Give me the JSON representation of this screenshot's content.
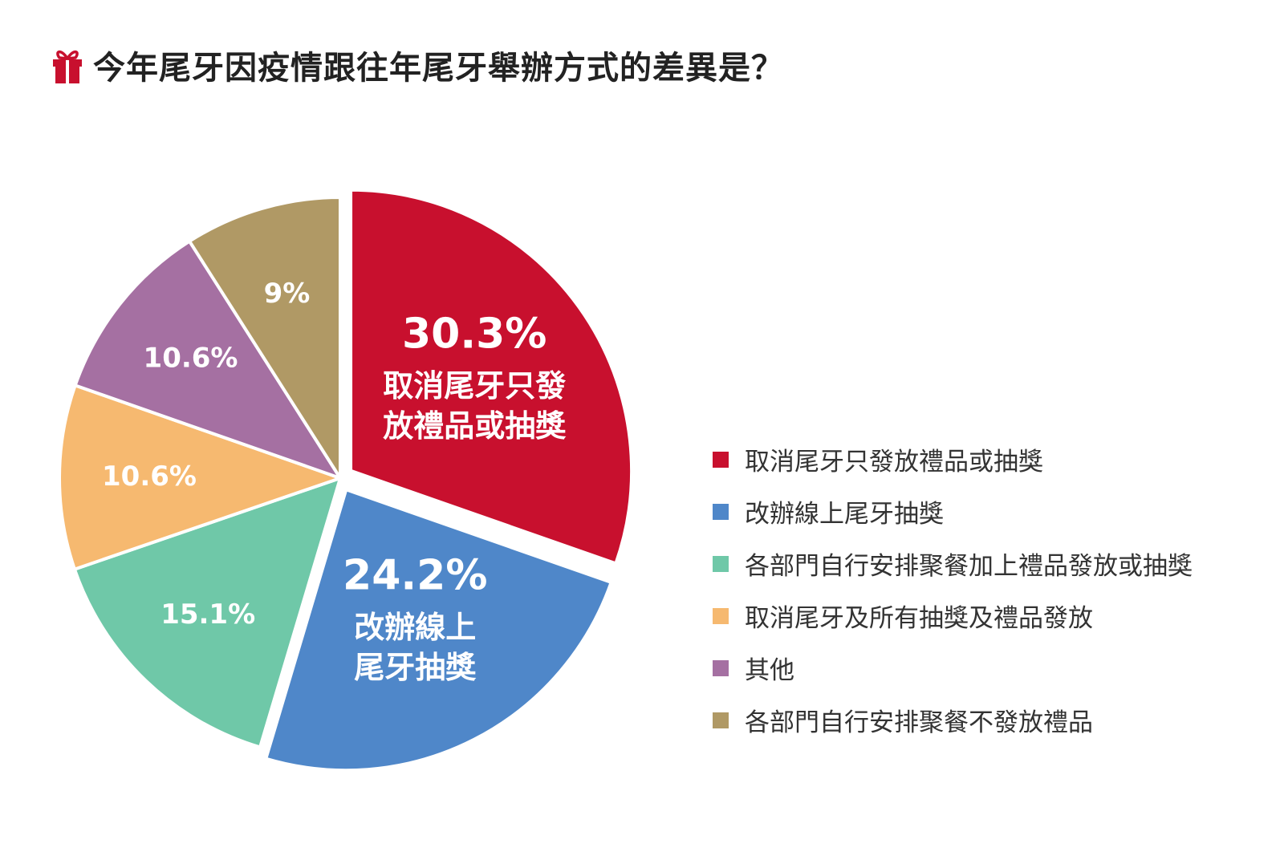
{
  "title": "今年尾牙因疫情跟往年尾牙舉辦方式的差異是？",
  "icon": "gift-icon",
  "colors": {
    "title_icon": "#c8102e"
  },
  "chart_data": {
    "type": "pie",
    "title": "今年尾牙因疫情跟往年尾牙舉辦方式的差異是？",
    "legend_position": "right",
    "start_angle_deg": 0,
    "direction": "clockwise",
    "slices": [
      {
        "label": "取消尾牙只發放禮品或抽獎",
        "value": 30.3,
        "value_label": "30.3%",
        "inner_label": [
          "取消尾牙只發",
          "放禮品或抽獎"
        ],
        "color": "#c8102e",
        "exploded": true
      },
      {
        "label": "改辦線上尾牙抽獎",
        "value": 24.2,
        "value_label": "24.2%",
        "inner_label": [
          "改辦線上",
          "尾牙抽獎"
        ],
        "color": "#4f87c9",
        "exploded": true
      },
      {
        "label": "各部門自行安排聚餐加上禮品發放或抽獎",
        "value": 15.1,
        "value_label": "15.1%",
        "inner_label": [],
        "color": "#6fc8a8",
        "exploded": false
      },
      {
        "label": "取消尾牙及所有抽獎及禮品發放",
        "value": 10.6,
        "value_label": "10.6%",
        "inner_label": [],
        "color": "#f6b970",
        "exploded": false
      },
      {
        "label": "其他",
        "value": 10.6,
        "value_label": "10.6%",
        "inner_label": [],
        "color": "#a570a2",
        "exploded": false
      },
      {
        "label": "各部門自行安排聚餐不發放禮品",
        "value": 9,
        "value_label": "9%",
        "inner_label": [],
        "color": "#b09965",
        "exploded": false
      }
    ]
  }
}
